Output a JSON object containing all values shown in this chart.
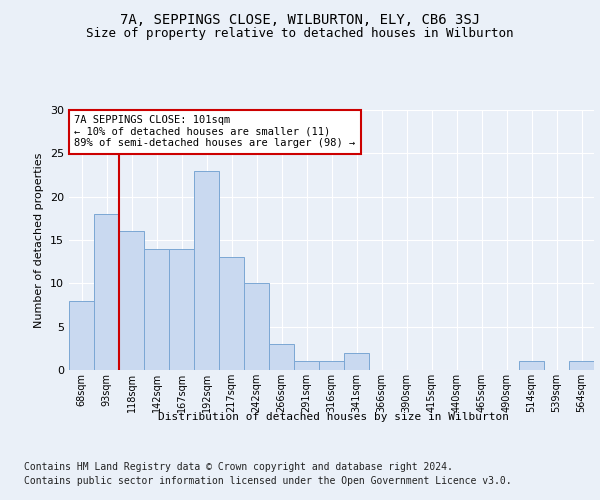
{
  "title": "7A, SEPPINGS CLOSE, WILBURTON, ELY, CB6 3SJ",
  "subtitle": "Size of property relative to detached houses in Wilburton",
  "xlabel": "Distribution of detached houses by size in Wilburton",
  "ylabel": "Number of detached properties",
  "categories": [
    "68sqm",
    "93sqm",
    "118sqm",
    "142sqm",
    "167sqm",
    "192sqm",
    "217sqm",
    "242sqm",
    "266sqm",
    "291sqm",
    "316sqm",
    "341sqm",
    "366sqm",
    "390sqm",
    "415sqm",
    "440sqm",
    "465sqm",
    "490sqm",
    "514sqm",
    "539sqm",
    "564sqm"
  ],
  "values": [
    8,
    18,
    16,
    14,
    14,
    23,
    13,
    10,
    3,
    1,
    1,
    2,
    0,
    0,
    0,
    0,
    0,
    0,
    1,
    0,
    1
  ],
  "bar_color": "#c9d9f0",
  "bar_edgecolor": "#7ba7d4",
  "vline_x": 1.5,
  "vline_color": "#cc0000",
  "annotation_text": "7A SEPPINGS CLOSE: 101sqm\n← 10% of detached houses are smaller (11)\n89% of semi-detached houses are larger (98) →",
  "annotation_box_edgecolor": "#cc0000",
  "ylim": [
    0,
    30
  ],
  "yticks": [
    0,
    5,
    10,
    15,
    20,
    25,
    30
  ],
  "footer_line1": "Contains HM Land Registry data © Crown copyright and database right 2024.",
  "footer_line2": "Contains public sector information licensed under the Open Government Licence v3.0.",
  "bg_color": "#eaf0f8",
  "plot_bg_color": "#eaf0f8",
  "grid_color": "#ffffff",
  "title_fontsize": 10,
  "subtitle_fontsize": 9,
  "footer_fontsize": 7
}
